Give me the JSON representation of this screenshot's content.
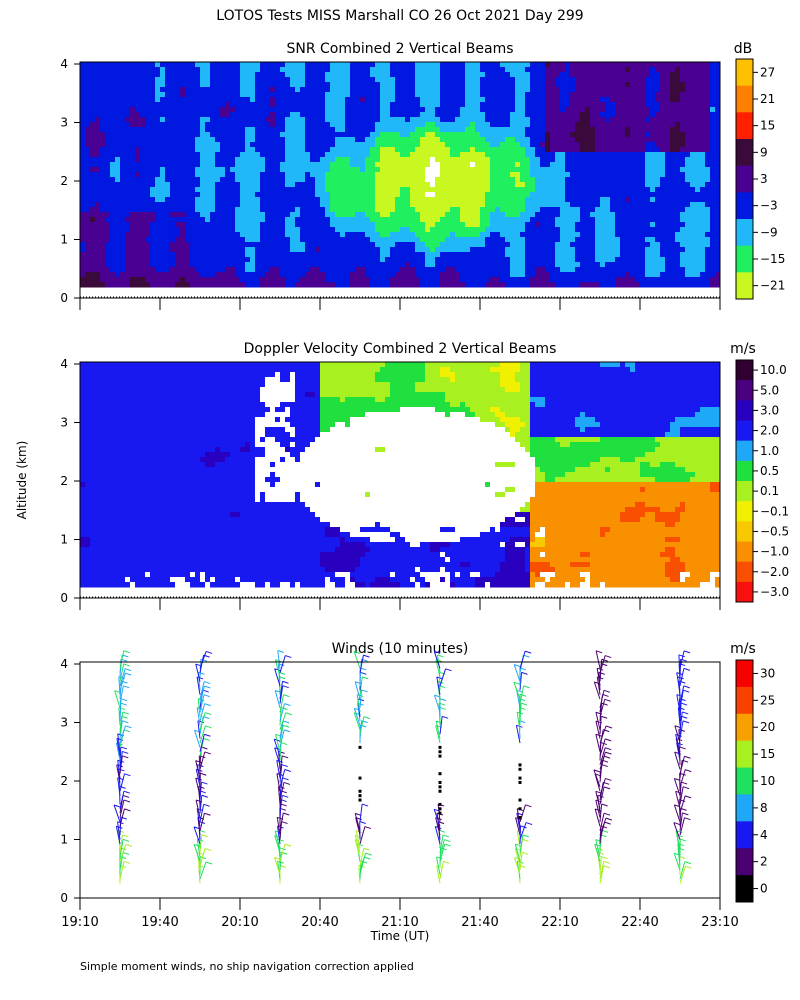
{
  "figure": {
    "title": "LOTOS Tests MISS Marshall CO  26 Oct 2021 Day 299",
    "ylabel": "Altitude (km)",
    "xlabel": "Time (UT)",
    "footnote": "Simple moment winds, no ship navigation correction applied",
    "x_ticks": [
      "19:10",
      "19:40",
      "20:10",
      "20:40",
      "21:10",
      "21:40",
      "22:10",
      "22:40",
      "23:10"
    ],
    "y_ticks": [
      "0",
      "1",
      "2",
      "3",
      "4"
    ]
  },
  "chart_data": [
    {
      "type": "heatmap",
      "title": "SNR Combined 2 Vertical Beams",
      "unit": "dB",
      "xlim": [
        "19:10",
        "23:10"
      ],
      "ylim": [
        0,
        4
      ],
      "colorbar_ticks": [
        "27",
        "21",
        "15",
        "9",
        "3",
        "−3",
        "−9",
        "−15",
        "−21"
      ],
      "colorbar_colors": [
        "#ffc000",
        "#ff8000",
        "#ff2000",
        "#3a0a3a",
        "#4a0090",
        "#0018e0",
        "#20b8f8",
        "#20f060",
        "#c8f820"
      ]
    },
    {
      "type": "heatmap",
      "title": "Doppler Velocity Combined 2 Vertical Beams",
      "unit": "m/s",
      "xlim": [
        "19:10",
        "23:10"
      ],
      "ylim": [
        0,
        4
      ],
      "colorbar_ticks": [
        "10.0",
        "5.0",
        "3.0",
        "2.0",
        "1.0",
        "0.5",
        "0.1",
        "−0.1",
        "−0.5",
        "−1.0",
        "−2.0",
        "−3.0"
      ],
      "colorbar_colors": [
        "#300030",
        "#4a0080",
        "#2a00c0",
        "#1818f0",
        "#20a8f8",
        "#20e040",
        "#a8f020",
        "#f0f000",
        "#f8c800",
        "#f89000",
        "#f85000",
        "#f81010"
      ]
    },
    {
      "type": "scatter",
      "title": "Winds (10 minutes)",
      "unit": "m/s",
      "xlim": [
        "19:10",
        "23:10"
      ],
      "ylim": [
        0,
        4
      ],
      "colorbar_ticks": [
        "30",
        "25",
        "20",
        "15",
        "10",
        "8",
        "4",
        "2",
        "0"
      ],
      "colorbar_colors": [
        "#f80000",
        "#f84000",
        "#f8a000",
        "#a8f020",
        "#20e060",
        "#20a8f8",
        "#1818f0",
        "#4a0070",
        "#000000"
      ],
      "profile_times": [
        "19:25",
        "19:55",
        "20:25",
        "20:55",
        "21:25",
        "21:55",
        "22:25",
        "22:55"
      ]
    }
  ],
  "colors": {
    "frame": "#000000",
    "missing": "#ffffff"
  }
}
